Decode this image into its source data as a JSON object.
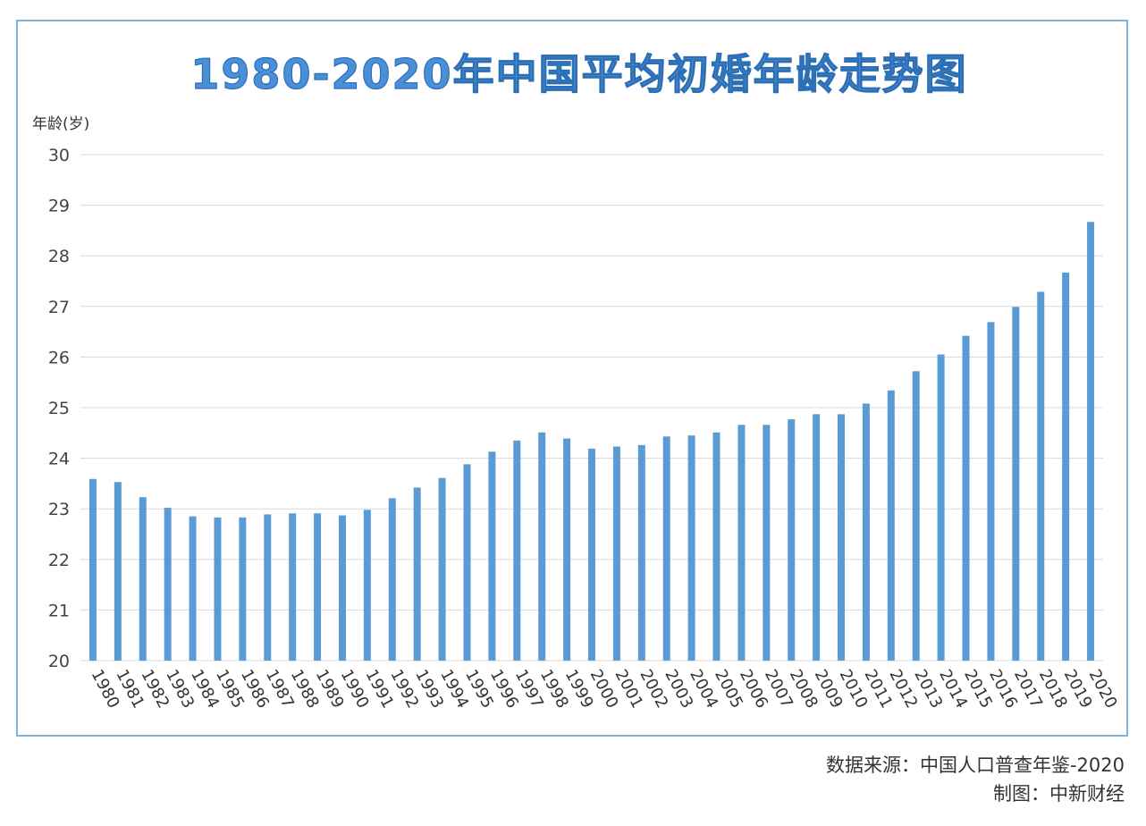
{
  "chart_data": {
    "type": "bar",
    "title": "1980-2020年中国平均初婚年龄走势图",
    "ylabel": "年龄(岁)",
    "xlabel": "",
    "ylim": [
      20,
      30
    ],
    "yticks": [
      20,
      21,
      22,
      23,
      24,
      25,
      26,
      27,
      28,
      29,
      30
    ],
    "grid": true,
    "categories": [
      "1980",
      "1981",
      "1982",
      "1983",
      "1984",
      "1985",
      "1986",
      "1987",
      "1988",
      "1989",
      "1990",
      "1991",
      "1992",
      "1993",
      "1994",
      "1995",
      "1996",
      "1997",
      "1998",
      "1999",
      "2000",
      "2001",
      "2002",
      "2003",
      "2004",
      "2005",
      "2006",
      "2007",
      "2008",
      "2009",
      "2010",
      "2011",
      "2012",
      "2013",
      "2014",
      "2015",
      "2016",
      "2017",
      "2018",
      "2019",
      "2020"
    ],
    "values": [
      23.59,
      23.53,
      23.23,
      23.02,
      22.85,
      22.83,
      22.83,
      22.89,
      22.91,
      22.91,
      22.87,
      22.98,
      23.21,
      23.42,
      23.61,
      23.88,
      24.13,
      24.35,
      24.51,
      24.39,
      24.19,
      24.23,
      24.26,
      24.43,
      24.45,
      24.51,
      24.66,
      24.66,
      24.77,
      24.87,
      24.87,
      25.08,
      25.34,
      25.72,
      26.05,
      26.42,
      26.69,
      26.99,
      27.29,
      27.67,
      28.67
    ],
    "bar_color": "#5b9bd5",
    "title_color": "#4a90d9"
  },
  "footer": {
    "source": "数据来源：中国人口普查年鉴-2020",
    "credit": "制图：中新财经"
  }
}
